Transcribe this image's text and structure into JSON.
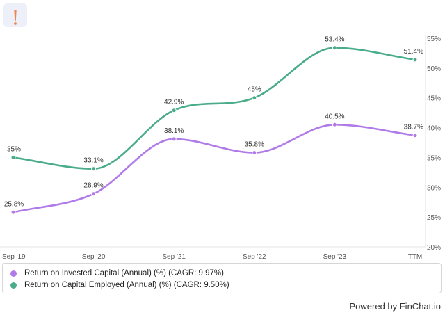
{
  "colors": {
    "roic": "#b07be8",
    "roce": "#4aac88",
    "logo": "#f08452"
  },
  "logo": {
    "icon": "exclamation-icon"
  },
  "footer": {
    "powered_by": "Powered by FinChat.io"
  },
  "chart_data": {
    "type": "line",
    "categories": [
      "Sep '19",
      "Sep '20",
      "Sep '21",
      "Sep '22",
      "Sep '23",
      "TTM"
    ],
    "series": [
      {
        "name": "Return on Invested Capital (Annual) (%) (CAGR: 9.97%)",
        "values": [
          25.8,
          28.9,
          38.1,
          35.8,
          40.5,
          38.7
        ],
        "labels": [
          "25.8%",
          "28.9%",
          "38.1%",
          "35.8%",
          "40.5%",
          "38.7%"
        ]
      },
      {
        "name": "Return on Capital Employed (Annual) (%) (CAGR: 9.50%)",
        "values": [
          35,
          33.1,
          42.9,
          45,
          53.4,
          51.4
        ],
        "labels": [
          "35%",
          "33.1%",
          "42.9%",
          "45%",
          "53.4%",
          "51.4%"
        ]
      }
    ],
    "yaxis": {
      "position": "right",
      "min": 20,
      "max": 55,
      "step": 5,
      "ticks": [
        "20%",
        "25%",
        "30%",
        "35%",
        "40%",
        "45%",
        "50%",
        "55%"
      ]
    },
    "grid": false,
    "legend": "bottom"
  }
}
